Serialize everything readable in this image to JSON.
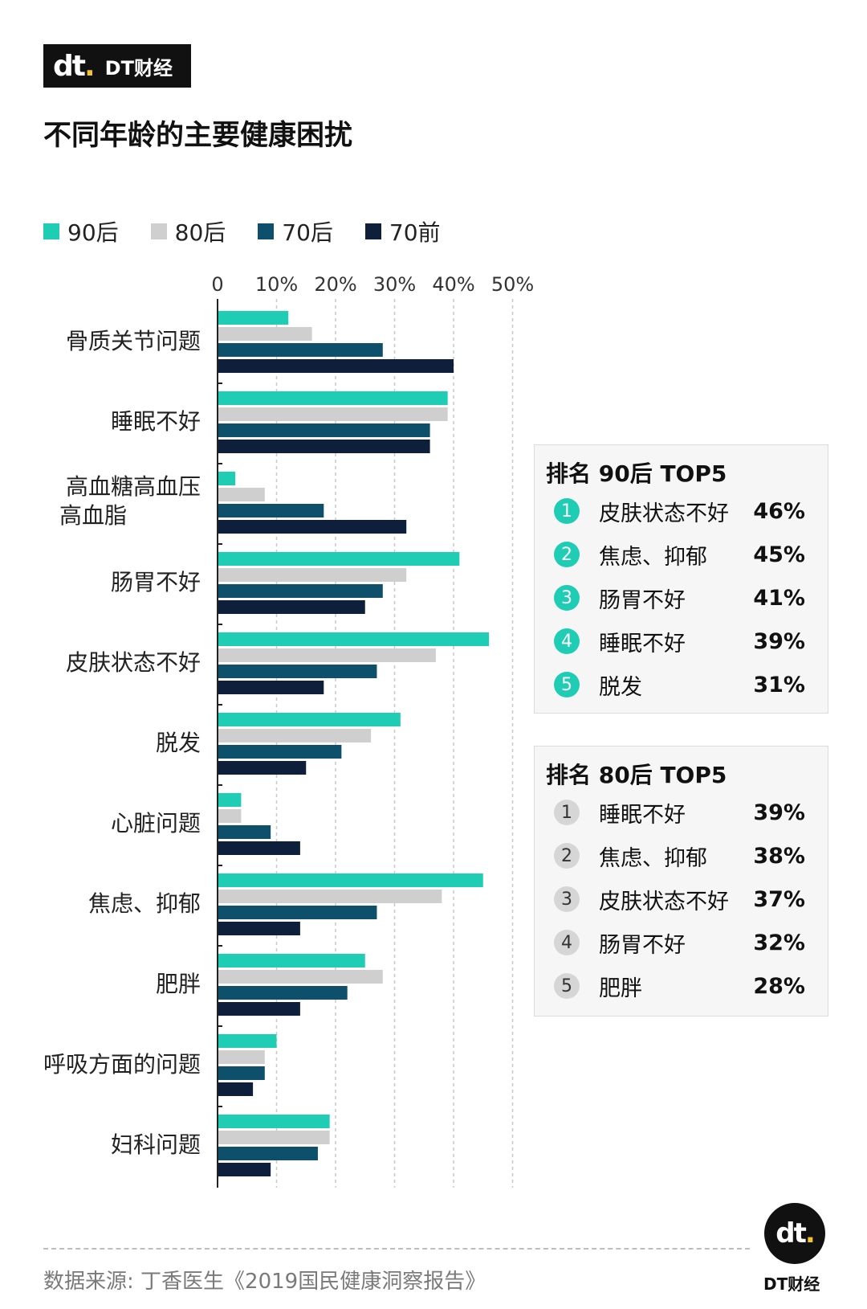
{
  "brand": {
    "name": "DT财经",
    "mark": "dt"
  },
  "title": "不同年龄的主要健康困扰",
  "legend": [
    {
      "label": "90后",
      "color": "#1ecdb3"
    },
    {
      "label": "80后",
      "color": "#cfcfcf"
    },
    {
      "label": "70后",
      "color": "#0e4f6b"
    },
    {
      "label": "70前",
      "color": "#0e1f3b"
    }
  ],
  "chart_data": {
    "type": "bar",
    "orientation": "horizontal",
    "categories": [
      "骨质关节问题",
      "睡眠不好",
      "高血糖高血压\n高血脂",
      "肠胃不好",
      "皮肤状态不好",
      "脱发",
      "心脏问题",
      "焦虑、抑郁",
      "肥胖",
      "呼吸方面的问题",
      "妇科问题"
    ],
    "series": [
      {
        "name": "90后",
        "color": "#1ecdb3",
        "values": [
          12,
          39,
          3,
          41,
          46,
          31,
          4,
          45,
          25,
          10,
          19
        ]
      },
      {
        "name": "80后",
        "color": "#cfcfcf",
        "values": [
          16,
          39,
          8,
          32,
          37,
          26,
          4,
          38,
          28,
          8,
          19
        ]
      },
      {
        "name": "70后",
        "color": "#0e4f6b",
        "values": [
          28,
          36,
          18,
          28,
          27,
          21,
          9,
          27,
          22,
          8,
          17
        ]
      },
      {
        "name": "70前",
        "color": "#0e1f3b",
        "values": [
          40,
          36,
          32,
          25,
          18,
          15,
          14,
          14,
          14,
          6,
          9
        ]
      }
    ],
    "tick_labels": [
      "0",
      "10%",
      "20%",
      "30%",
      "40%",
      "50%"
    ],
    "xlim": [
      0,
      50
    ],
    "grid": true,
    "legend_position": "top-left"
  },
  "top90": {
    "title": "排名 90后 TOP5",
    "items": [
      {
        "rank": "1",
        "label": "皮肤状态不好",
        "value": "46%"
      },
      {
        "rank": "2",
        "label": "焦虑、抑郁",
        "value": "45%"
      },
      {
        "rank": "3",
        "label": "肠胃不好",
        "value": "41%"
      },
      {
        "rank": "4",
        "label": "睡眠不好",
        "value": "39%"
      },
      {
        "rank": "5",
        "label": "脱发",
        "value": "31%"
      }
    ],
    "circle_color": "#1ecdb3"
  },
  "top80": {
    "title": "排名 80后 TOP5",
    "items": [
      {
        "rank": "1",
        "label": "睡眠不好",
        "value": "39%"
      },
      {
        "rank": "2",
        "label": "焦虑、抑郁",
        "value": "38%"
      },
      {
        "rank": "3",
        "label": "皮肤状态不好",
        "value": "37%"
      },
      {
        "rank": "4",
        "label": "肠胃不好",
        "value": "32%"
      },
      {
        "rank": "5",
        "label": "肥胖",
        "value": "28%"
      }
    ],
    "circle_color": "#d6d6d6"
  },
  "source": "数据来源: 丁香医生《2019国民健康洞察报告》",
  "bottom_brand": "DT财经"
}
